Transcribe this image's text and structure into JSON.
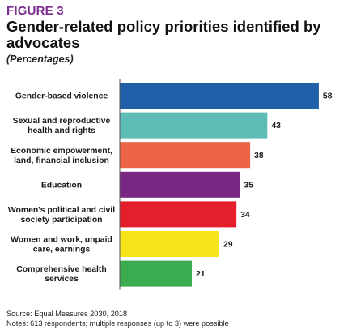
{
  "figure_label": "FIGURE 3",
  "title": "Gender-related policy priorities identified by advocates",
  "subtitle": "(Percentages)",
  "source": "Source: Equal Measures 2030, 2018",
  "notes": "Notes: 613 respondents; multiple responses (up to 3) were possible",
  "chart_data": {
    "type": "bar",
    "orientation": "horizontal",
    "title": "Gender-related policy priorities identified by advocates",
    "subtitle": "(Percentages)",
    "categories": [
      [
        "Gender-based violence"
      ],
      [
        "Sexual and reproductive",
        "health and rights"
      ],
      [
        "Economic empowerment,",
        "land, financial inclusion"
      ],
      [
        "Education"
      ],
      [
        "Women's political and civil",
        "society participation"
      ],
      [
        "Women and work, unpaid",
        "care, earnings"
      ],
      [
        "Comprehensive health",
        "services"
      ]
    ],
    "values": [
      58,
      43,
      38,
      35,
      34,
      29,
      21
    ],
    "colors": [
      "#2060a8",
      "#5dbcb6",
      "#ec6547",
      "#7a2784",
      "#e41e2b",
      "#f7e51c",
      "#3bab50"
    ],
    "xlim": [
      0,
      60
    ],
    "grid": false,
    "legend": false
  }
}
